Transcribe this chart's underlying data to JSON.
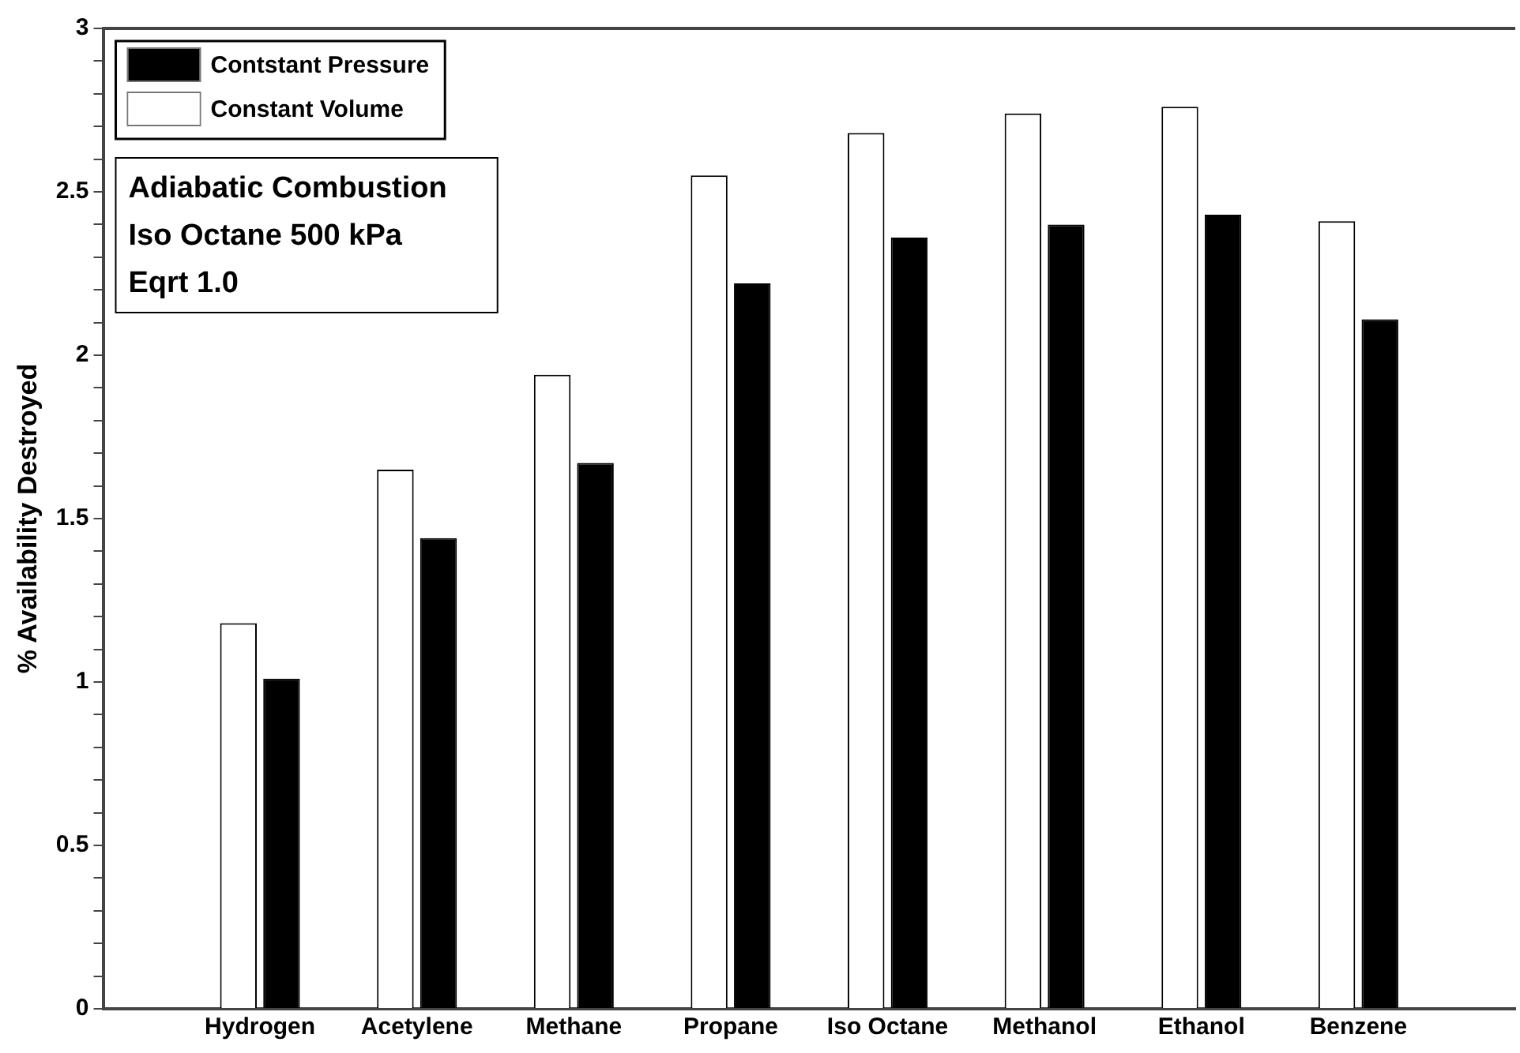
{
  "chart_data": {
    "type": "bar",
    "ylabel": "% Availability Destroyed",
    "categories": [
      null,
      "Hydrogen",
      "Acetylene",
      "Methane",
      "Propane",
      "Iso Octane",
      "Methanol",
      "Ethanol",
      "Benzene",
      null
    ],
    "series": [
      {
        "name": "Contstant Pressure",
        "color": "#000000",
        "values": [
          null,
          1.01,
          1.44,
          1.67,
          2.22,
          2.36,
          2.4,
          2.43,
          2.11,
          null
        ]
      },
      {
        "name": "Constant Volume",
        "color": "#ffffff",
        "values": [
          null,
          1.18,
          1.65,
          1.94,
          2.55,
          2.68,
          2.74,
          2.76,
          2.41,
          null
        ]
      }
    ],
    "ylim": [
      0,
      3
    ],
    "yticks": [
      0,
      {
        "value": 0.1,
        "label": null
      },
      {
        "value": 0.2,
        "label": null
      },
      {
        "value": 0.3,
        "label": null
      },
      {
        "value": 0.4,
        "label": null
      },
      0.5,
      {
        "value": 0.6,
        "label": null
      },
      {
        "value": 0.7,
        "label": null
      },
      {
        "value": 0.8,
        "label": null
      },
      {
        "value": 0.9,
        "label": null
      },
      1,
      {
        "value": 1.1,
        "label": null
      },
      {
        "value": 1.2,
        "label": null
      },
      {
        "value": 1.3,
        "label": null
      },
      {
        "value": 1.4,
        "label": null
      },
      1.5,
      {
        "value": 1.6,
        "label": null
      },
      {
        "value": 1.7,
        "label": null
      },
      {
        "value": 1.8,
        "label": null
      },
      {
        "value": 1.9,
        "label": null
      },
      2,
      {
        "value": 2.1,
        "label": null
      },
      {
        "value": 2.2,
        "label": null
      },
      {
        "value": 2.3,
        "label": null
      },
      {
        "value": 2.4,
        "label": null
      },
      2.5,
      {
        "value": 2.6,
        "label": null
      },
      {
        "value": 2.7,
        "label": null
      },
      {
        "value": 2.8,
        "label": null
      },
      {
        "value": 2.9,
        "label": null
      },
      3
    ],
    "grid": false,
    "legend": "top left",
    "annotations": [
      "Adiabatic Combustion",
      "Iso Octane 500 kPa",
      "Eqrt 1.0"
    ]
  }
}
